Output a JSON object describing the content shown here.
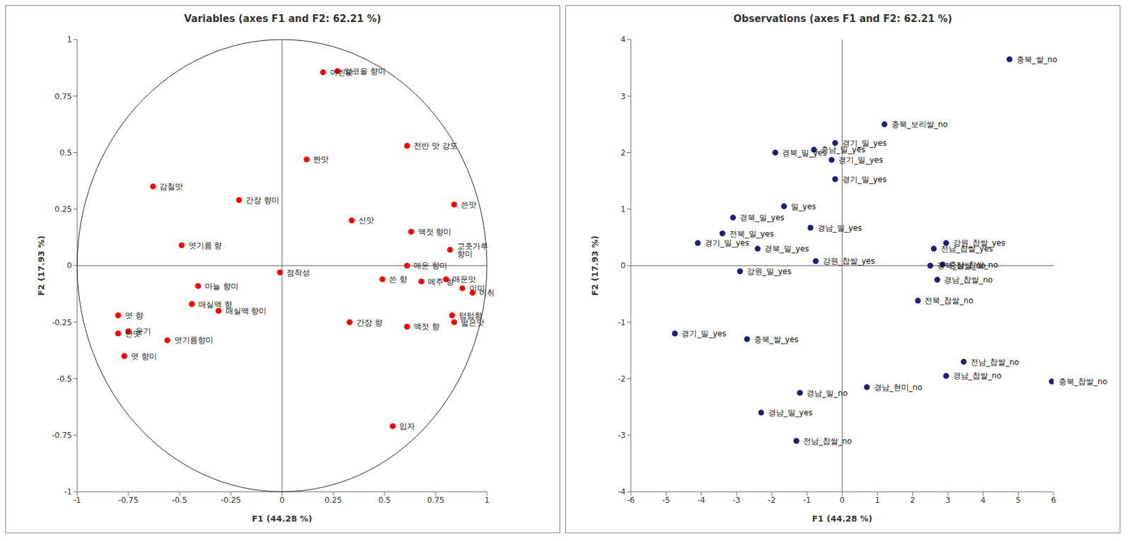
{
  "chart_data": [
    {
      "type": "scatter",
      "title": "Variables (axes F1 and F2: 62.21 %)",
      "x_label": "F1 (44.28 %)",
      "y_label": "F2 (17.93 %)",
      "xlim": [
        -1,
        1
      ],
      "ylim": [
        -1,
        1
      ],
      "xticks": [
        -1,
        -0.75,
        -0.5,
        -0.25,
        0,
        0.25,
        0.5,
        0.75,
        1
      ],
      "yticks": [
        -1,
        -0.75,
        -0.5,
        -0.25,
        0,
        0.25,
        0.5,
        0.75,
        1
      ],
      "grid": false,
      "color": "#ff0000",
      "marker": "circle",
      "labels": [
        "아린맛",
        "알코올 향미",
        "짠맛",
        "전반 맛 강도",
        "감칠맛",
        "간장 향미",
        "쓴맛",
        "신맛",
        "액젓 향미",
        "엿기름 향",
        "고춧가루 향미",
        "점착성",
        "쓴 향",
        "매운 향미",
        "메주 향",
        "매운맛",
        "이미",
        "이취",
        "마늘 향미",
        "매실액 향",
        "매실액 향미",
        "간장 향",
        "액젓 향",
        "텁텁함",
        "떫은맛",
        "엿 향",
        "단맛",
        "윤기",
        "엿기름향미",
        "엿 향미",
        "입자"
      ],
      "x": [
        0.2,
        0.27,
        0.12,
        0.61,
        -0.63,
        -0.21,
        0.84,
        0.34,
        0.63,
        -0.49,
        0.82,
        -0.01,
        0.49,
        0.61,
        0.68,
        0.8,
        0.88,
        0.93,
        -0.41,
        -0.44,
        -0.31,
        0.33,
        0.61,
        0.83,
        0.84,
        -0.8,
        -0.8,
        -0.75,
        -0.56,
        -0.77,
        0.54
      ],
      "y": [
        0.855,
        0.86,
        0.47,
        0.53,
        0.35,
        0.29,
        0.27,
        0.2,
        0.15,
        0.09,
        0.07,
        -0.03,
        -0.06,
        0.0,
        -0.07,
        -0.06,
        -0.1,
        -0.12,
        -0.09,
        -0.17,
        -0.2,
        -0.25,
        -0.27,
        -0.22,
        -0.25,
        -0.22,
        -0.3,
        -0.29,
        -0.33,
        -0.4,
        -0.71
      ]
    },
    {
      "type": "scatter",
      "title": "Observations (axes F1 and F2: 62.21 %)",
      "x_label": "F1 (44.28 %)",
      "y_label": "F2 (17.93 %)",
      "xlim": [
        -6,
        6
      ],
      "ylim": [
        -4,
        4
      ],
      "xticks": [
        -6,
        -5,
        -4,
        -3,
        -2,
        -1,
        0,
        1,
        2,
        3,
        4,
        5,
        6
      ],
      "yticks": [
        -4,
        -3,
        -2,
        -1,
        0,
        1,
        2,
        3,
        4
      ],
      "grid": false,
      "color": "#1f1f7a",
      "marker": "circle",
      "labels": [
        "충북_쌀_no",
        "충북_보리쌀_no",
        "경기_밀_yes",
        "충남_밀_yes",
        "경북_밀_yes",
        "경기_밀_yes",
        "경기_밀_yes",
        "밀_yes",
        "경북_밀_yes",
        "경남_밀_yes",
        "전북_밀_yes",
        "경기_밀_yes",
        "경북_밀_yes",
        "강원_찹쌀_yes",
        "강원_밀_yes",
        "경기_밀_yes",
        "충북_쌀_yes",
        "경남_밀_no",
        "경남_밀_yes",
        "전남_찹쌀_no",
        "강원_찹쌀_yes",
        "전남_찹쌀_yes",
        "경북_찹쌀_no",
        "충남_찹쌀_no",
        "경남_찹쌀_no",
        "전북_찹쌀_no",
        "경남_현미_no",
        "전남_찹쌀_no",
        "경남_찹쌀_no",
        "충북_찹쌀_no"
      ],
      "x": [
        4.75,
        1.2,
        -0.2,
        -0.8,
        -1.9,
        -0.3,
        -0.2,
        -1.65,
        -3.1,
        -0.9,
        -3.4,
        -4.1,
        -2.4,
        -0.75,
        -2.9,
        -4.75,
        -2.7,
        -1.2,
        -2.3,
        -1.3,
        2.95,
        2.6,
        2.5,
        2.85,
        2.7,
        2.15,
        0.7,
        3.45,
        2.95,
        5.95
      ],
      "y": [
        3.65,
        2.5,
        2.17,
        2.05,
        2.0,
        1.87,
        1.53,
        1.05,
        0.85,
        0.67,
        0.57,
        0.4,
        0.3,
        0.08,
        -0.1,
        -1.2,
        -1.3,
        -2.25,
        -2.6,
        -3.1,
        0.4,
        0.3,
        0.0,
        0.02,
        -0.25,
        -0.62,
        -2.15,
        -1.7,
        -1.95,
        -2.05
      ]
    }
  ]
}
